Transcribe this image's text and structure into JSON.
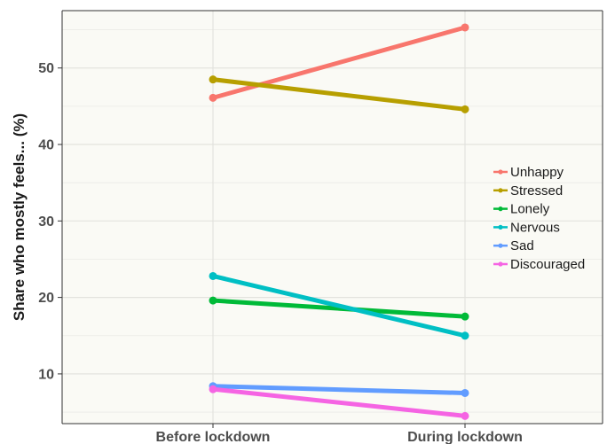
{
  "chart_data": {
    "type": "line",
    "title": "",
    "xlabel": "",
    "ylabel": "Share who mostly feels... (%)",
    "categories": [
      "Before lockdown",
      "During lockdown"
    ],
    "ylim": [
      3.5,
      57.5
    ],
    "yticks": [
      10,
      20,
      30,
      40,
      50
    ],
    "grid": true,
    "legend_position": "right",
    "series": [
      {
        "name": "Unhappy",
        "values": [
          46.1,
          55.3
        ],
        "color": "#F8766D"
      },
      {
        "name": "Stressed",
        "values": [
          48.5,
          44.6
        ],
        "color": "#B79F00"
      },
      {
        "name": "Lonely",
        "values": [
          19.6,
          17.5
        ],
        "color": "#00BA38"
      },
      {
        "name": "Nervous",
        "values": [
          22.8,
          15.0
        ],
        "color": "#00BFC4"
      },
      {
        "name": "Sad",
        "values": [
          8.4,
          7.5
        ],
        "color": "#619CFF"
      },
      {
        "name": "Discouraged",
        "values": [
          8.0,
          4.5
        ],
        "color": "#F564E3"
      }
    ]
  }
}
